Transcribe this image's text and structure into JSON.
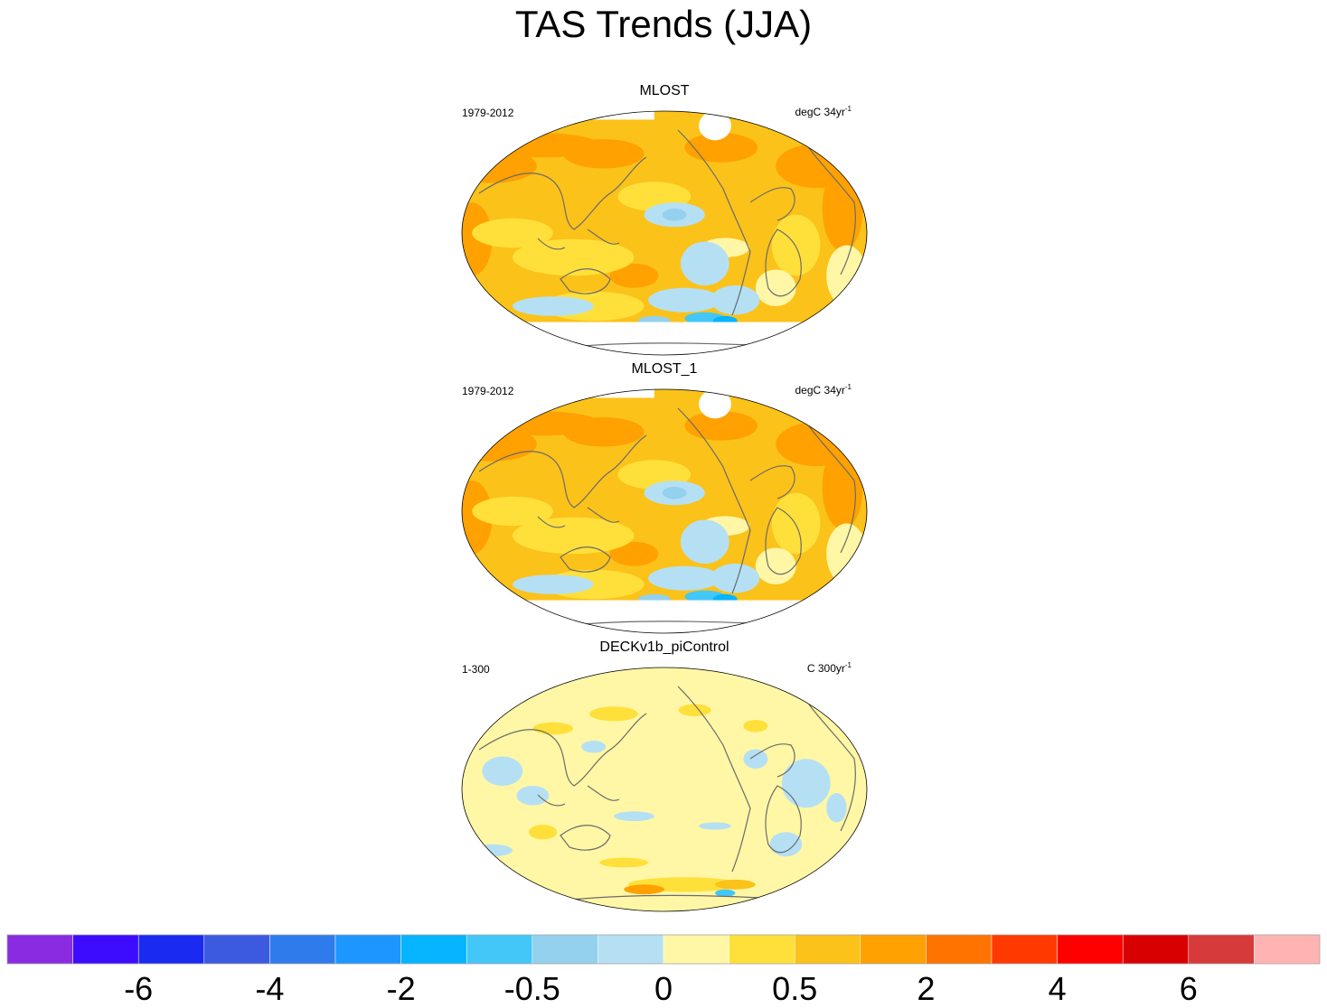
{
  "title": "TAS Trends (JJA)",
  "panels": [
    {
      "name": "MLOST",
      "period": "1979-2012",
      "units": "degC 34yr",
      "units_exp": "-1",
      "style": "warm"
    },
    {
      "name": "MLOST_1",
      "period": "1979-2012",
      "units": "degC 34yr",
      "units_exp": "-1",
      "style": "warm"
    },
    {
      "name": "DECKv1b_piControl",
      "period": "1-300",
      "units": "C 300yr",
      "units_exp": "-1",
      "style": "neutral"
    }
  ],
  "chart_data": {
    "type": "heatmap",
    "title": "TAS Trends (JJA)",
    "projection": "Robinson",
    "colorbar": {
      "colors": [
        "#8a2be2",
        "#3d0cff",
        "#1b2af0",
        "#3c5ae0",
        "#2f7bec",
        "#1e96ff",
        "#06b4ff",
        "#42c7f8",
        "#93d1ee",
        "#b5e0f4",
        "#fff7a5",
        "#ffe03a",
        "#fbc21a",
        "#ffa100",
        "#ff7300",
        "#ff3a00",
        "#ff0000",
        "#d80000",
        "#d73a3a",
        "#ffb3b3"
      ],
      "tick_labels": [
        "-6",
        "-4",
        "-2",
        "-0.5",
        "0",
        "0.5",
        "2",
        "4",
        "6"
      ]
    }
  }
}
